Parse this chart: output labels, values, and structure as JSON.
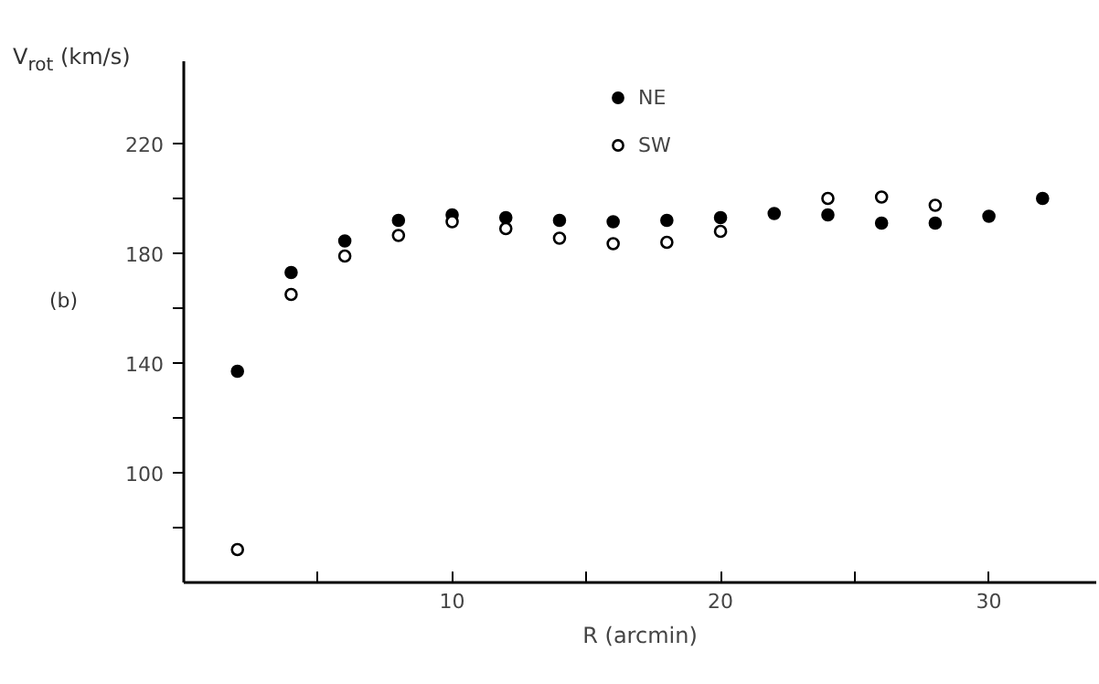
{
  "chart_data": {
    "type": "scatter",
    "xlabel": "R (arcmin)",
    "ylabel": "V$_{rot}$ (km/s)",
    "annotations": [
      "(b)"
    ],
    "x": [
      2,
      4,
      6,
      8,
      10,
      12,
      14,
      16,
      18,
      20,
      22,
      24,
      26,
      28,
      30,
      32
    ],
    "series": [
      {
        "name": "NE",
        "color": "#000000",
        "marker": "circle",
        "values": [
          137,
          173,
          184.5,
          192,
          194,
          193,
          192,
          191.5,
          192,
          193,
          194.5,
          194,
          191,
          191,
          193.5,
          200
        ]
      },
      {
        "name": "SW",
        "color": "#000000",
        "marker": "circle_open",
        "values": [
          72,
          165,
          179,
          186.5,
          191.5,
          189,
          185.5,
          183.5,
          184,
          188,
          null,
          200,
          200.5,
          197.5,
          null,
          null
        ]
      }
    ],
    "xlim": [
      0,
      34
    ],
    "ylim": [
      60,
      250
    ],
    "xticks": [
      {
        "value": 5,
        "label": null
      },
      10,
      {
        "value": 15,
        "label": null
      },
      20,
      {
        "value": 25,
        "label": null
      },
      30
    ],
    "yticks": [
      {
        "value": 80,
        "label": null
      },
      100,
      {
        "value": 120,
        "label": null
      },
      140,
      {
        "value": 160,
        "label": null
      },
      180,
      {
        "value": 200,
        "label": null
      },
      220
    ],
    "grid": false,
    "legend": "top"
  }
}
